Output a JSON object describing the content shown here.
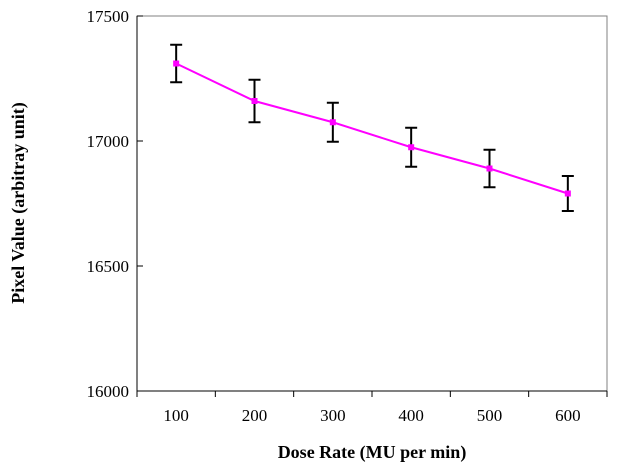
{
  "chart_data": {
    "type": "line",
    "title": "",
    "xlabel": "Dose Rate (MU per min)",
    "ylabel": "Pixel Value (arbitray unit)",
    "x": [
      100,
      200,
      300,
      400,
      500,
      600
    ],
    "x_tick_labels": [
      "100",
      "200",
      "300",
      "400",
      "500",
      "600"
    ],
    "xlim": [
      50,
      650
    ],
    "ylim": [
      16000,
      17500
    ],
    "y_ticks": [
      16000,
      16500,
      17000,
      17500
    ],
    "y_tick_labels": [
      "16000",
      "16500",
      "17000",
      "17500"
    ],
    "grid": false,
    "legend": "none",
    "series": [
      {
        "values": [
          17310,
          17160,
          17075,
          16975,
          16890,
          16790
        ],
        "error": [
          75,
          85,
          78,
          78,
          75,
          70
        ],
        "color": "#ff00ff"
      }
    ]
  }
}
